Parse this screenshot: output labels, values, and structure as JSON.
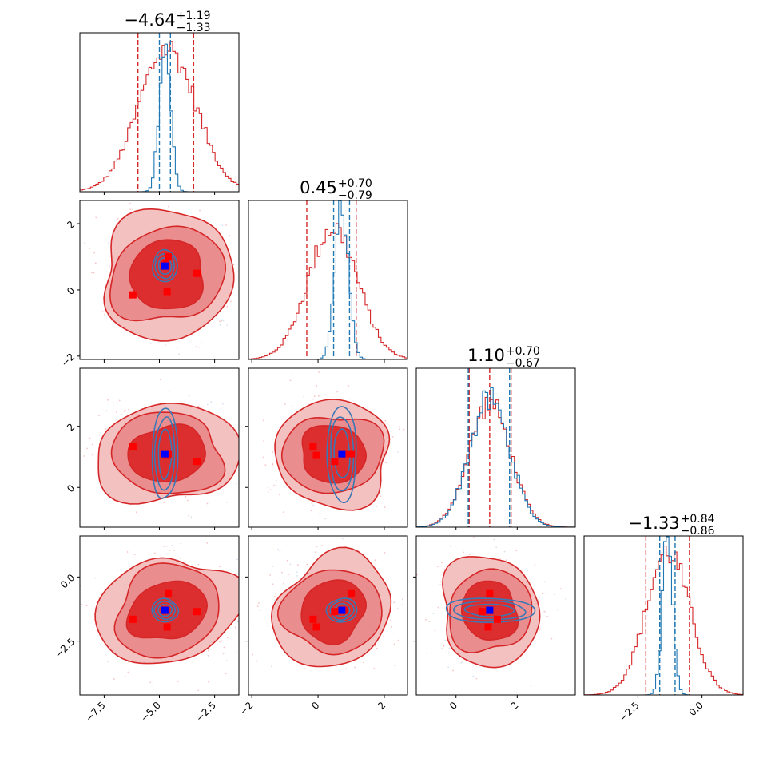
{
  "chart_data": {
    "type": "corner",
    "parameters": [
      {
        "index": 0,
        "median": -4.64,
        "plus": "+1.19",
        "minus": "−1.33",
        "median_label": "−4.64",
        "range": [
          -8.6,
          -1.4
        ],
        "ticks": [
          -7.5,
          -5.0,
          -2.5
        ],
        "tick_labels": [
          "−7.5",
          "−5.0",
          "−2.5"
        ],
        "red_quantiles": [
          -5.97,
          -4.64,
          -3.45
        ],
        "blue_quantiles": [
          -5.0,
          -4.5
        ],
        "red_hist_sd": 1.3,
        "blue_hist_sd": 0.25,
        "blue_hist_mean": -4.75
      },
      {
        "index": 1,
        "median": 0.45,
        "plus": "+0.70",
        "minus": "−0.79",
        "median_label": "0.45",
        "range": [
          -2.1,
          2.7
        ],
        "ticks": [
          -2,
          0,
          2
        ],
        "tick_labels": [
          "−2",
          "0",
          "2"
        ],
        "red_quantiles": [
          -0.34,
          0.45,
          1.15
        ],
        "blue_quantiles": [
          0.47,
          0.95
        ],
        "red_hist_sd": 0.75,
        "blue_hist_sd": 0.2,
        "blue_hist_mean": 0.72
      },
      {
        "index": 2,
        "median": 1.1,
        "plus": "+0.70",
        "minus": "−0.67",
        "median_label": "1.10",
        "range": [
          -1.3,
          3.9
        ],
        "ticks": [
          0,
          2
        ],
        "tick_labels": [
          "0",
          "2"
        ],
        "red_quantiles": [
          0.43,
          1.1,
          1.8
        ],
        "blue_quantiles": [
          0.4,
          1.75
        ],
        "red_hist_sd": 0.68,
        "blue_hist_sd": 0.66,
        "blue_hist_mean": 1.1
      },
      {
        "index": 3,
        "median": -1.33,
        "plus": "+0.84",
        "minus": "−0.86",
        "median_label": "−1.33",
        "range": [
          -4.6,
          1.6
        ],
        "ticks": [
          -2.5,
          0.0
        ],
        "tick_labels": [
          "−2.5",
          "0.0"
        ],
        "red_quantiles": [
          -2.19,
          -1.33,
          -0.49
        ],
        "blue_quantiles": [
          -1.65,
          -1.05
        ],
        "red_hist_sd": 0.85,
        "blue_hist_sd": 0.2,
        "blue_hist_mean": -1.35
      }
    ],
    "truth_points_red": [
      [
        -6.2,
        -0.15,
        1.35,
        -1.65
      ],
      [
        -4.65,
        -0.05,
        1.05,
        -1.95
      ],
      [
        -3.3,
        0.5,
        0.85,
        -1.35
      ],
      [
        -4.6,
        1.0,
        1.1,
        -0.65
      ],
      [
        -4.7,
        0.8,
        1.1,
        -1.3
      ]
    ],
    "truth_point_blue": [
      -4.75,
      0.72,
      1.1,
      -1.3
    ],
    "colors": {
      "red": "#d62728",
      "red_fill_light": "#f4c1c1",
      "red_fill_mid": "#ea8d8e",
      "red_fill_dark": "#dc2e2e",
      "blue": "#1f77b4",
      "blue_contour": "#3a78b6",
      "blue_point": "#0000ff",
      "red_point": "#ff0000"
    }
  }
}
